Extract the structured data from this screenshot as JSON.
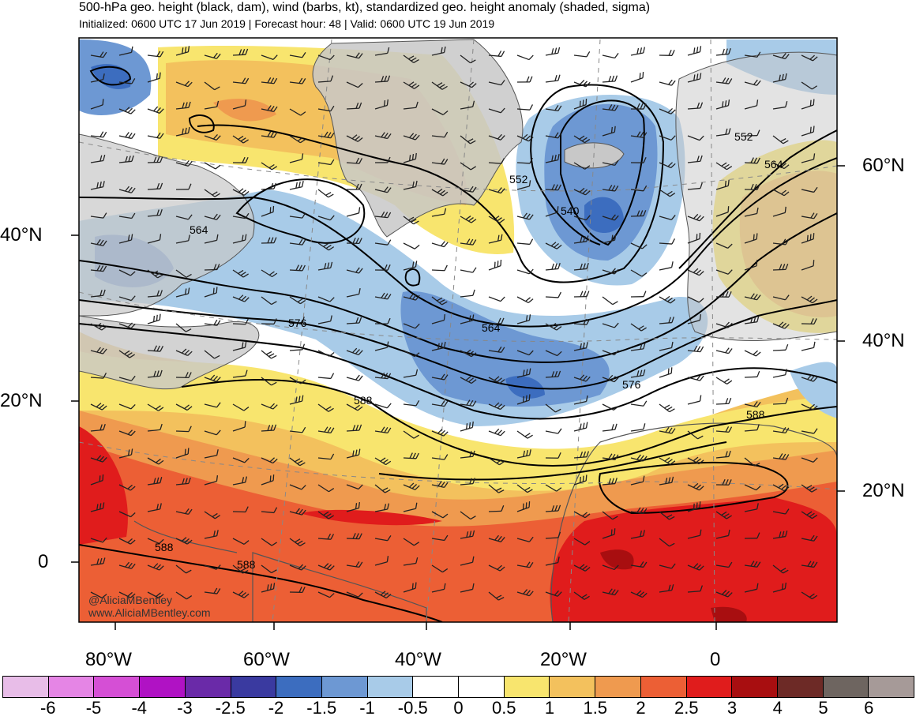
{
  "header": {
    "title": "500-hPa geo. height (black, dam), wind (barbs, kt), standardized geo. height anomaly (shaded, sigma)",
    "subtitle": "Initialized: 0600 UTC 17 Jun 2019 | Forecast hour: 48 | Valid: 0600 UTC 19 Jun 2019"
  },
  "axes": {
    "left_labels": [
      "40°N",
      "20°N",
      "0"
    ],
    "right_labels": [
      "60°N",
      "40°N",
      "20°N"
    ],
    "bottom_labels": [
      "80°W",
      "60°W",
      "40°W",
      "20°W",
      "0"
    ]
  },
  "contour_labels": [
    "552",
    "552",
    "540",
    "564",
    "564",
    "564",
    "576",
    "576",
    "588",
    "588",
    "588",
    "588"
  ],
  "colorbar": {
    "labels": [
      "-6",
      "-5",
      "-4",
      "-3",
      "-2.5",
      "-2",
      "-1.5",
      "-1",
      "-0.5",
      "0",
      "0.5",
      "1",
      "1.5",
      "2",
      "2.5",
      "3",
      "4",
      "5",
      "6"
    ],
    "colors": [
      "#e8bde8",
      "#e585e5",
      "#d54fd5",
      "#b012c4",
      "#6a2aa8",
      "#3a3aa0",
      "#3c6dbf",
      "#6d98d3",
      "#a8cbe8",
      "#ffffff",
      "#ffffff",
      "#f8e56e",
      "#f3c15d",
      "#ef9a4f",
      "#ec5f35",
      "#e01c1c",
      "#a80e10",
      "#6d2a26",
      "#6e6560",
      "#a69a98"
    ]
  },
  "credit": {
    "line1": "@AliciaMBentley",
    "line2": "www.AliciaMBentley.com"
  },
  "map_colors": {
    "land": "#c8c8c8",
    "ocean": "#ffffff",
    "coast": "#555555"
  }
}
